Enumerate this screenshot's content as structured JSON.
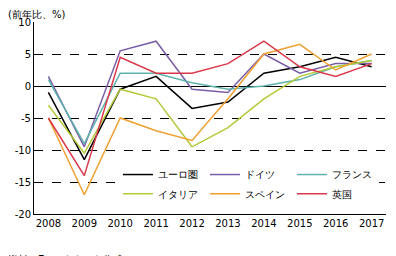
{
  "chart_data": {
    "type": "line",
    "ylabel": "(前年比、%)",
    "source": "資料：Eurostat から作成。",
    "x": [
      2008,
      2009,
      2010,
      2011,
      2012,
      2013,
      2014,
      2015,
      2016,
      2017
    ],
    "series": [
      {
        "name": "ユーロ圏",
        "color": "#000000",
        "values": [
          -1,
          -11.5,
          -0.5,
          1.5,
          -3.5,
          -2.5,
          2,
          3,
          4.5,
          3
        ]
      },
      {
        "name": "ドイツ",
        "color": "#7b5ea7",
        "values": [
          1.5,
          -9.5,
          5.5,
          7,
          -0.5,
          -1,
          5,
          2,
          3.5,
          3.5
        ]
      },
      {
        "name": "フランス",
        "color": "#5fb3ad",
        "values": [
          1,
          -9,
          2,
          2,
          0.5,
          -0.5,
          0,
          1,
          3,
          4
        ]
      },
      {
        "name": "イタリア",
        "color": "#b5c93a",
        "values": [
          -3,
          -10.5,
          -0.5,
          -2,
          -9.5,
          -6.5,
          -2,
          1.5,
          3,
          4
        ]
      },
      {
        "name": "スペイン",
        "color": "#f0a030",
        "values": [
          -5,
          -17,
          -5,
          -7,
          -8.5,
          -2,
          5,
          6.5,
          2.5,
          5
        ]
      },
      {
        "name": "英国",
        "color": "#d9394a",
        "values": [
          -5,
          -14,
          4.5,
          2,
          2,
          3.5,
          7,
          3,
          1.5,
          3.5
        ]
      }
    ],
    "xlim": [
      2007.6,
      2017.4
    ],
    "xticks": [
      2008,
      2009,
      2010,
      2011,
      2012,
      2013,
      2014,
      2015,
      2016,
      2017
    ],
    "ylim": [
      -20,
      10
    ],
    "yticks": [
      -20,
      -15,
      -10,
      -5,
      0,
      5,
      10
    ],
    "grid": true,
    "legend": "lower right"
  }
}
